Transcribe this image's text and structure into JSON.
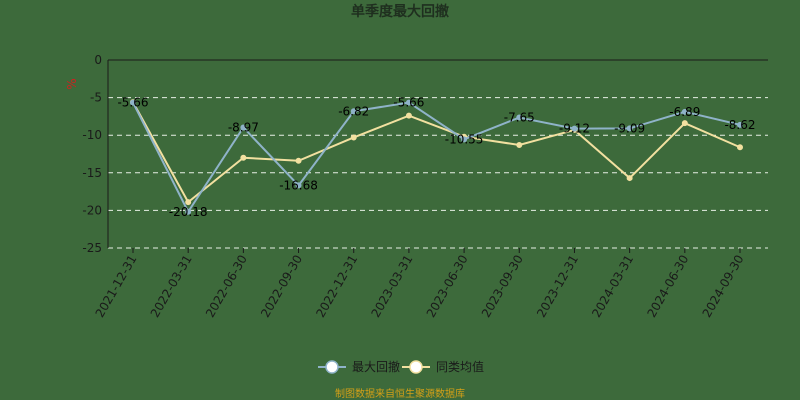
{
  "chart_data": {
    "type": "line",
    "title": "单季度最大回撤",
    "ylabel": "%",
    "ylim": [
      -25,
      0
    ],
    "yticks": [
      0,
      -5,
      -10,
      -15,
      -20,
      -25
    ],
    "grid": true,
    "legend_position": "bottom",
    "categories": [
      "2021-12-31",
      "2022-03-31",
      "2022-06-30",
      "2022-09-30",
      "2022-12-31",
      "2023-03-31",
      "2023-06-30",
      "2023-09-30",
      "2023-12-31",
      "2024-03-31",
      "2024-06-30",
      "2024-09-30"
    ],
    "series": [
      {
        "name": "最大回撤",
        "color": "#8fb3c9",
        "values": [
          -5.66,
          -20.18,
          -8.97,
          -16.68,
          -6.82,
          -5.66,
          -10.55,
          -7.65,
          -9.12,
          -9.09,
          -6.89,
          -8.62
        ],
        "labels": [
          "-5.66",
          "-20.18",
          "-8.97",
          "-16.68",
          "-6.82",
          "-5.66",
          "-10.55",
          "-7.65",
          "-9.12",
          "-9.09",
          "-6.89",
          "-8.62"
        ]
      },
      {
        "name": "同类均值",
        "color": "#f2e0a0",
        "values": [
          -5.6,
          -18.9,
          -13.0,
          -13.4,
          -10.3,
          -7.4,
          -10.2,
          -11.3,
          -9.3,
          -15.7,
          -8.4,
          -11.6
        ]
      }
    ],
    "source": "制图数据来自恒生聚源数据库"
  }
}
